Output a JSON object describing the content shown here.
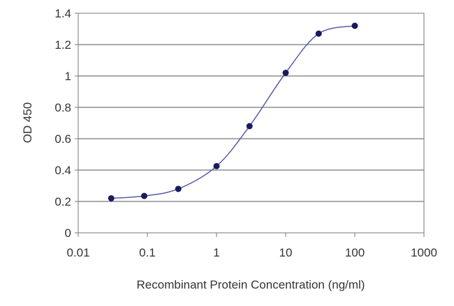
{
  "chart_data": {
    "type": "scatter",
    "title": "",
    "xlabel": "Recombinant Protein Concentration (ng/ml)",
    "ylabel": "OD 450",
    "x_scale": "log",
    "xlim": [
      0.01,
      1000
    ],
    "ylim": [
      0,
      1.4
    ],
    "x_ticks": [
      0.01,
      0.1,
      1,
      10,
      100,
      1000
    ],
    "x_tick_labels": [
      "0.01",
      "0.1",
      "1",
      "10",
      "100",
      "1000"
    ],
    "y_ticks": [
      0,
      0.2,
      0.4,
      0.6,
      0.8,
      1,
      1.2,
      1.4
    ],
    "y_tick_labels": [
      "0",
      "0.2",
      "0.4",
      "0.6",
      "0.8",
      "1",
      "1.2",
      "1.4"
    ],
    "grid": "horizontal",
    "legend": "none",
    "fit_curve": true,
    "series": [
      {
        "x": [
          0.03,
          0.09,
          0.28,
          1,
          3,
          10,
          30,
          100
        ],
        "y": [
          0.22,
          0.235,
          0.28,
          0.425,
          0.68,
          1.02,
          1.27,
          1.32
        ]
      }
    ],
    "colors": {
      "point": "#1a1a5e",
      "line": "#5a5aa8",
      "grid": "#555555",
      "frame": "#777777"
    }
  }
}
